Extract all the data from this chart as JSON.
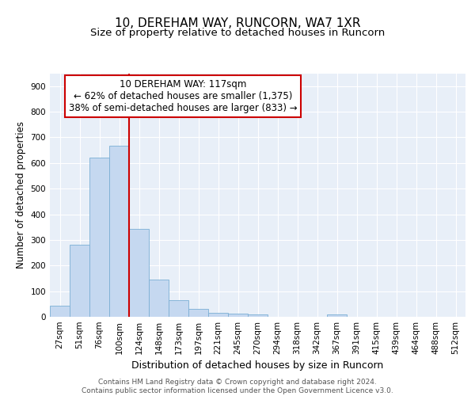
{
  "title1": "10, DEREHAM WAY, RUNCORN, WA7 1XR",
  "title2": "Size of property relative to detached houses in Runcorn",
  "xlabel": "Distribution of detached houses by size in Runcorn",
  "ylabel": "Number of detached properties",
  "categories": [
    "27sqm",
    "51sqm",
    "76sqm",
    "100sqm",
    "124sqm",
    "148sqm",
    "173sqm",
    "197sqm",
    "221sqm",
    "245sqm",
    "270sqm",
    "294sqm",
    "318sqm",
    "342sqm",
    "367sqm",
    "391sqm",
    "415sqm",
    "439sqm",
    "464sqm",
    "488sqm",
    "512sqm"
  ],
  "values": [
    42,
    280,
    622,
    668,
    343,
    145,
    65,
    30,
    15,
    12,
    10,
    0,
    0,
    0,
    10,
    0,
    0,
    0,
    0,
    0,
    0
  ],
  "bar_color": "#c5d8f0",
  "bar_edge_color": "#7bafd4",
  "vline_x": 3.5,
  "vline_color": "#cc0000",
  "annotation_text": "10 DEREHAM WAY: 117sqm\n← 62% of detached houses are smaller (1,375)\n38% of semi-detached houses are larger (833) →",
  "annotation_box_color": "#ffffff",
  "annotation_box_edge_color": "#cc0000",
  "background_color": "#e8eff8",
  "grid_color": "#ffffff",
  "ylim": [
    0,
    950
  ],
  "yticks": [
    0,
    100,
    200,
    300,
    400,
    500,
    600,
    700,
    800,
    900
  ],
  "footer": "Contains HM Land Registry data © Crown copyright and database right 2024.\nContains public sector information licensed under the Open Government Licence v3.0.",
  "title1_fontsize": 11,
  "title2_fontsize": 9.5,
  "xlabel_fontsize": 9,
  "ylabel_fontsize": 8.5,
  "tick_fontsize": 7.5,
  "annotation_fontsize": 8.5,
  "footer_fontsize": 6.5
}
